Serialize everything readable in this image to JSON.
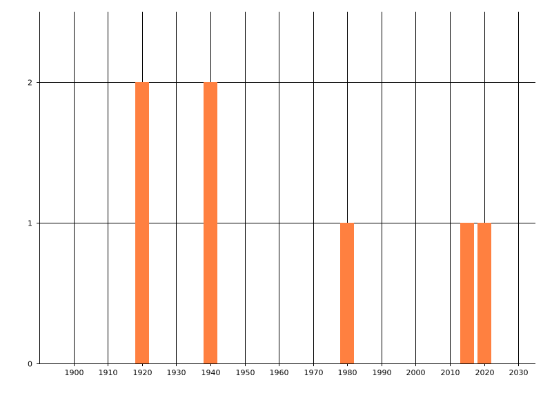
{
  "chart_data": {
    "type": "bar",
    "title": "",
    "xlabel": "",
    "ylabel": "",
    "x": [
      1920,
      1940,
      1980,
      2015,
      2020
    ],
    "values": [
      2,
      2,
      1,
      1,
      1
    ],
    "bar_width_years": 4,
    "xlim": [
      1890,
      2035
    ],
    "ylim": [
      0,
      2.5
    ],
    "x_ticks": [
      "1900",
      "1910",
      "1920",
      "1930",
      "1940",
      "1950",
      "1960",
      "1970",
      "1980",
      "1990",
      "2000",
      "2010",
      "2020",
      "2030"
    ],
    "y_ticks": [
      "0",
      "1",
      "2"
    ],
    "grid": true,
    "bar_color": "#FF8040",
    "grid_color": "#000000"
  }
}
